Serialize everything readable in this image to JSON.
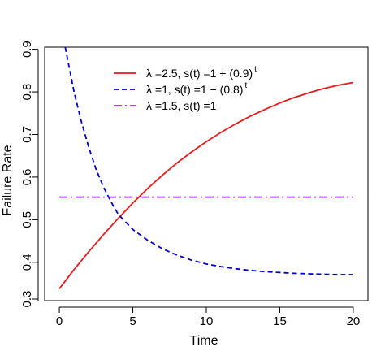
{
  "chart_data": {
    "type": "line",
    "xlabel": "Time",
    "ylabel": "Failure Rate",
    "xlim": [
      -1,
      21
    ],
    "ylim": [
      0.31,
      0.905
    ],
    "x_ticks": [
      "0",
      "5",
      "10",
      "15",
      "20"
    ],
    "y_ticks": [
      "0.3",
      "0.4",
      "0.5",
      "0.6",
      "0.7",
      "0.8",
      "0.9"
    ],
    "legend_position": "top",
    "series": [
      {
        "name": "λ =2.5, s(t) =1 + (0.9)",
        "name_sup": "t",
        "color": "#e41a1c",
        "dash": "solid",
        "x": [
          0,
          1,
          2,
          3,
          4,
          5,
          6,
          7,
          8,
          9,
          10,
          11,
          12,
          13,
          14,
          15,
          16,
          17,
          18,
          19,
          20
        ],
        "y": [
          0.338,
          0.383,
          0.425,
          0.465,
          0.503,
          0.539,
          0.573,
          0.604,
          0.633,
          0.659,
          0.683,
          0.705,
          0.725,
          0.743,
          0.759,
          0.774,
          0.787,
          0.798,
          0.808,
          0.816,
          0.822
        ]
      },
      {
        "name": "λ =1, s(t) =1 − (0.8)",
        "name_sup": "t",
        "color": "#0000cc",
        "dash": "dashed",
        "x": [
          0.4,
          1,
          1.5,
          2,
          2.5,
          3,
          3.5,
          4,
          5,
          6,
          7,
          8,
          9,
          10,
          11,
          12,
          13,
          14,
          15,
          16,
          17,
          18,
          19,
          20
        ],
        "y": [
          0.905,
          0.8,
          0.73,
          0.67,
          0.618,
          0.577,
          0.543,
          0.513,
          0.477,
          0.452,
          0.432,
          0.417,
          0.405,
          0.396,
          0.39,
          0.385,
          0.381,
          0.378,
          0.376,
          0.374,
          0.373,
          0.372,
          0.371,
          0.371
        ]
      },
      {
        "name": "λ =1.5, s(t) =1",
        "name_sup": "",
        "color": "#a020f0",
        "dash": "dashdot",
        "x": [
          0,
          20
        ],
        "y": [
          0.553,
          0.553
        ]
      }
    ]
  }
}
